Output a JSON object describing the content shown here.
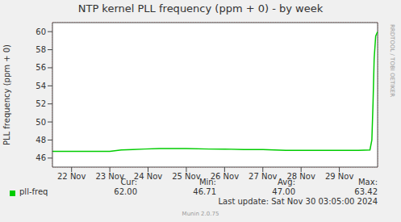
{
  "chart_data": {
    "type": "line",
    "title": "NTP kernel PLL frequency (ppm + 0) - by week",
    "y_label": "PLL frequency (ppm + 0)",
    "x": [
      21.5,
      22.0,
      22.5,
      23.0,
      23.3,
      23.6,
      23.9,
      24.3,
      25.0,
      25.6,
      26.0,
      26.5,
      27.0,
      27.6,
      28.0,
      28.5,
      29.0,
      29.5,
      29.8,
      29.85,
      29.88,
      29.91,
      29.95,
      30.0
    ],
    "series": [
      {
        "name": "pll-freq",
        "color": "#00cc00",
        "values": [
          46.75,
          46.75,
          46.75,
          46.75,
          46.9,
          46.95,
          47.0,
          47.05,
          47.05,
          47.0,
          47.0,
          46.95,
          46.95,
          46.85,
          46.85,
          46.85,
          46.85,
          46.85,
          46.9,
          48.0,
          52.0,
          57.0,
          59.5,
          60.0
        ]
      }
    ],
    "xlim": [
      21.5,
      30.0
    ],
    "xticks": [
      {
        "value": 22,
        "label": "22 Nov"
      },
      {
        "value": 23,
        "label": "23 Nov"
      },
      {
        "value": 24,
        "label": "24 Nov"
      },
      {
        "value": 25,
        "label": "25 Nov"
      },
      {
        "value": 26,
        "label": "26 Nov"
      },
      {
        "value": 27,
        "label": "27 Nov"
      },
      {
        "value": 28,
        "label": "28 Nov"
      },
      {
        "value": 29,
        "label": "29 Nov"
      }
    ],
    "ylim": [
      45,
      61
    ],
    "yticks": [
      46,
      48,
      50,
      52,
      54,
      56,
      58,
      60
    ],
    "grid": true,
    "stats": [
      {
        "name": "Cur:",
        "value": 62,
        "label": "62.00"
      },
      {
        "name": "Min:",
        "value": 46.71,
        "label": "46.71"
      },
      {
        "name": "Avg:",
        "value": 47,
        "label": "47.00"
      },
      {
        "name": "Max:",
        "value": 63.42,
        "label": "63.42"
      }
    ],
    "last_update": "Last update: Sat Nov 30 03:05:00 2024",
    "footer": "Munin 2.0.75",
    "watermark": "RRDTOOL / TOBI OETIKER"
  }
}
